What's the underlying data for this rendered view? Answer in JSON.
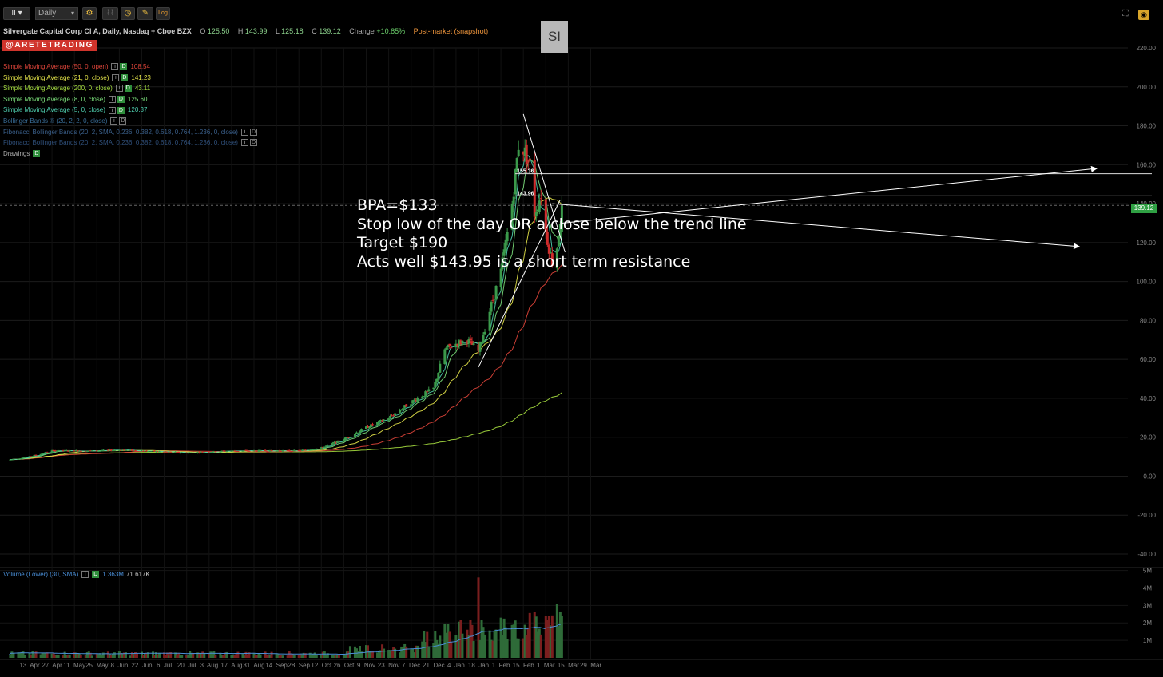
{
  "toolbar": {
    "chart_type_label": "II",
    "interval": "Daily",
    "settings_label": "⚙",
    "log_label": "Log"
  },
  "header": {
    "title": "Silvergate Capital Corp Cl A, Daily, Nasdaq + Cboe BZX",
    "open_label": "O",
    "open": "125.50",
    "high_label": "H",
    "high": "143.99",
    "low_label": "L",
    "low": "125.18",
    "close_label": "C",
    "close": "139.12",
    "change_label": "Change",
    "change": "+10.85%",
    "post_market": "Post-market (snapshot)",
    "ticker": "SI",
    "brand": "@ARETETRADING"
  },
  "studies": [
    {
      "name": "Simple Moving Average (50, 0, open)",
      "value": "108.54",
      "color": "#e0453a",
      "badge": "D",
      "active": true
    },
    {
      "name": "Simple Moving Average (21, 0, close)",
      "value": "141.23",
      "color": "#e6e64a",
      "badge": "D",
      "active": true
    },
    {
      "name": "Simple Moving Average (200, 0, close)",
      "value": "43.11",
      "color": "#a8e040",
      "badge": "D",
      "active": true
    },
    {
      "name": "Simple Moving Average (8, 0, close)",
      "value": "125.60",
      "color": "#7be07b",
      "badge": "D",
      "active": true
    },
    {
      "name": "Simple Moving Average (5, 0, close)",
      "value": "120.37",
      "color": "#4fd0b0",
      "badge": "D",
      "active": true
    },
    {
      "name": "Bollinger Bands ® (20, 2, 2, 0, close)",
      "value": "",
      "color": "#3a6f9a",
      "badge": "D",
      "active": false
    },
    {
      "name": "Fibonacci Bollinger Bands (20, 2, SMA, 0.236, 0.382, 0.618, 0.764, 1.236, 0, close)",
      "value": "",
      "color": "#3a5f8a",
      "badge": "D",
      "active": false
    },
    {
      "name": "Fibonacci Bollinger Bands (20, 2, SMA, 0.236, 0.382, 0.618, 0.764, 1.236, 0, close)",
      "value": "",
      "color": "#2f4f7a",
      "badge": "D",
      "active": false
    },
    {
      "name": "Drawings",
      "value": "",
      "color": "#aaaaaa",
      "badge": "D",
      "active": true
    }
  ],
  "annotation": {
    "line1": "BPA=$133",
    "line2": "Stop low of the day OR a close below the trend line",
    "line3": "Target $190",
    "line4": "Acts well $143.95 is a short term resistance"
  },
  "volume_legend": {
    "name": "Volume (Lower) (30, SMA)",
    "badge": "D",
    "value1": "1.363M",
    "value2": "71.617K"
  },
  "last_price": "139.12",
  "colors": {
    "up": "#3b9a4b",
    "down": "#d02c2c",
    "vol_up": "#2e6b38",
    "vol_down": "#7a1e1e",
    "grid": "#1c1c1c"
  },
  "chart_data": {
    "type": "candlestick",
    "price_axis": {
      "ticks": [
        220,
        200,
        180,
        160,
        140,
        120,
        100,
        80,
        60,
        40,
        20,
        0,
        -20,
        -40
      ],
      "labels": [
        "220.00",
        "200.00",
        "180.00",
        "160.00",
        "140.00",
        "120.00",
        "100.00",
        "80.00",
        "60.00",
        "40.00",
        "20.00",
        "0.00",
        "-20.00",
        "-40.00"
      ],
      "range": [
        -45,
        232
      ]
    },
    "volume_axis": {
      "ticks": [
        5,
        4,
        3,
        2,
        1
      ],
      "labels": [
        "5M",
        "4M",
        "3M",
        "2M",
        "1M"
      ],
      "range": [
        0,
        5.3
      ]
    },
    "date_labels": [
      "13. Apr",
      "27. Apr",
      "11. May",
      "25. May",
      "8. Jun",
      "22. Jun",
      "6. Jul",
      "20. Jul",
      "3. Aug",
      "17. Aug",
      "31. Aug",
      "14. Sep",
      "28. Sep",
      "12. Oct",
      "26. Oct",
      "9. Nov",
      "23. Nov",
      "7. Dec",
      "21. Dec",
      "4. Jan",
      "18. Jan",
      "1. Feb",
      "15. Feb",
      "1. Mar",
      "15. Mar",
      "29. Mar"
    ],
    "ohlc_last": {
      "open": 125.5,
      "high": 143.99,
      "low": 125.18,
      "close": 139.12
    },
    "horizontal_levels": [
      {
        "label": "155.36",
        "value": 155.36
      },
      {
        "label": "143.96",
        "value": 143.96
      }
    ],
    "price_anchors": [
      {
        "date": "1. Apr",
        "value": 8.5
      },
      {
        "date": "13. Apr",
        "value": 10
      },
      {
        "date": "27. Apr",
        "value": 13
      },
      {
        "date": "11. May",
        "value": 13
      },
      {
        "date": "25. May",
        "value": 13
      },
      {
        "date": "8. Jun",
        "value": 13.5
      },
      {
        "date": "22. Jun",
        "value": 13
      },
      {
        "date": "6. Jul",
        "value": 12.5
      },
      {
        "date": "20. Jul",
        "value": 12
      },
      {
        "date": "3. Aug",
        "value": 12.5
      },
      {
        "date": "17. Aug",
        "value": 13
      },
      {
        "date": "31. Aug",
        "value": 13
      },
      {
        "date": "14. Sep",
        "value": 13
      },
      {
        "date": "28. Sep",
        "value": 13
      },
      {
        "date": "12. Oct",
        "value": 14.5
      },
      {
        "date": "26. Oct",
        "value": 19
      },
      {
        "date": "9. Nov",
        "value": 25
      },
      {
        "date": "23. Nov",
        "value": 30
      },
      {
        "date": "7. Dec",
        "value": 38
      },
      {
        "date": "21. Dec",
        "value": 45
      },
      {
        "date": "28. Dec",
        "value": 65
      },
      {
        "date": "4. Jan",
        "value": 68
      },
      {
        "date": "11. Jan",
        "value": 70
      },
      {
        "date": "18. Jan",
        "value": 64
      },
      {
        "date": "25. Jan",
        "value": 85
      },
      {
        "date": "1. Feb",
        "value": 105
      },
      {
        "date": "8. Feb",
        "value": 140
      },
      {
        "date": "12. Feb",
        "value": 170
      },
      {
        "date": "15. Feb",
        "value": 168
      },
      {
        "date": "19. Feb",
        "value": 160
      },
      {
        "date": "22. Feb",
        "value": 135
      },
      {
        "date": "26. Feb",
        "value": 145
      },
      {
        "date": "1. Mar",
        "value": 125
      },
      {
        "date": "5. Mar",
        "value": 110
      },
      {
        "date": "8. Mar",
        "value": 118
      },
      {
        "date": "11. Mar",
        "value": 139
      }
    ],
    "moving_averages": [
      {
        "name": "Simple Moving Average (200, 0, close)",
        "last": 43.11
      },
      {
        "name": "Simple Moving Average (50, 0, open)",
        "last": 108.54
      },
      {
        "name": "Simple Moving Average (21, 0, close)",
        "last": 141.23
      },
      {
        "name": "Simple Moving Average (8, 0, close)",
        "last": 125.6
      },
      {
        "name": "Simple Moving Average (5, 0, close)",
        "last": 120.37
      }
    ],
    "volume_sma_last": "1.363M",
    "xlabel": "",
    "ylabel": ""
  }
}
